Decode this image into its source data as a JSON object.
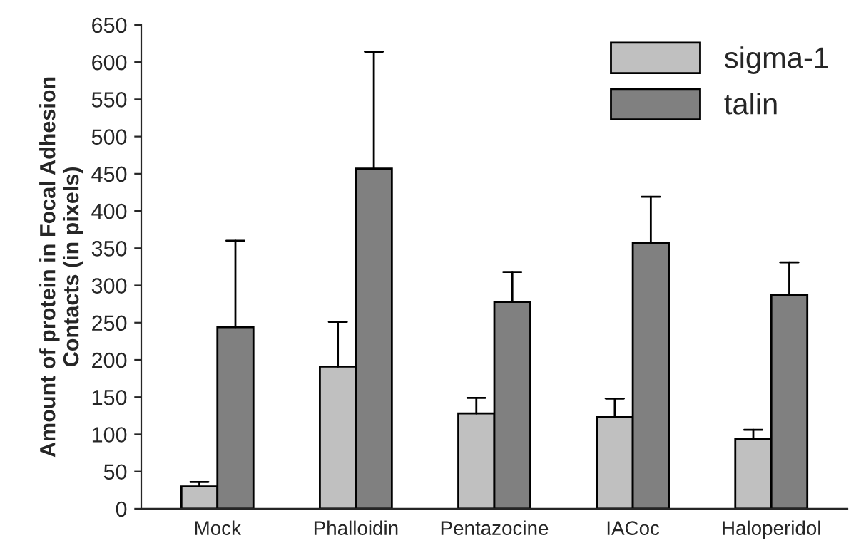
{
  "chart_data": {
    "type": "bar",
    "ylabel": "Amount of protein in Focal Adhesion\nContacts (in pixels)",
    "categories": [
      "Mock",
      "Phalloidin",
      "Pentazocine",
      "IACoc",
      "Haloperidol"
    ],
    "series": [
      {
        "name": "sigma-1",
        "color": "#c0c0c0",
        "values": [
          30,
          191,
          128,
          123,
          94
        ],
        "errors": [
          [
            30,
            36
          ],
          [
            191,
            251
          ],
          [
            128,
            149
          ],
          [
            123,
            148
          ],
          [
            94,
            106
          ]
        ]
      },
      {
        "name": "talin",
        "color": "#808080",
        "values": [
          244,
          457,
          278,
          357,
          287
        ],
        "errors": [
          [
            244,
            360
          ],
          [
            457,
            614
          ],
          [
            278,
            318
          ],
          [
            357,
            419
          ],
          [
            287,
            331
          ]
        ]
      }
    ],
    "ylim": [
      0,
      650
    ],
    "yticks": [
      0,
      50,
      100,
      150,
      200,
      250,
      300,
      350,
      400,
      450,
      500,
      550,
      600,
      650
    ],
    "grid": false,
    "legend": "top right"
  }
}
